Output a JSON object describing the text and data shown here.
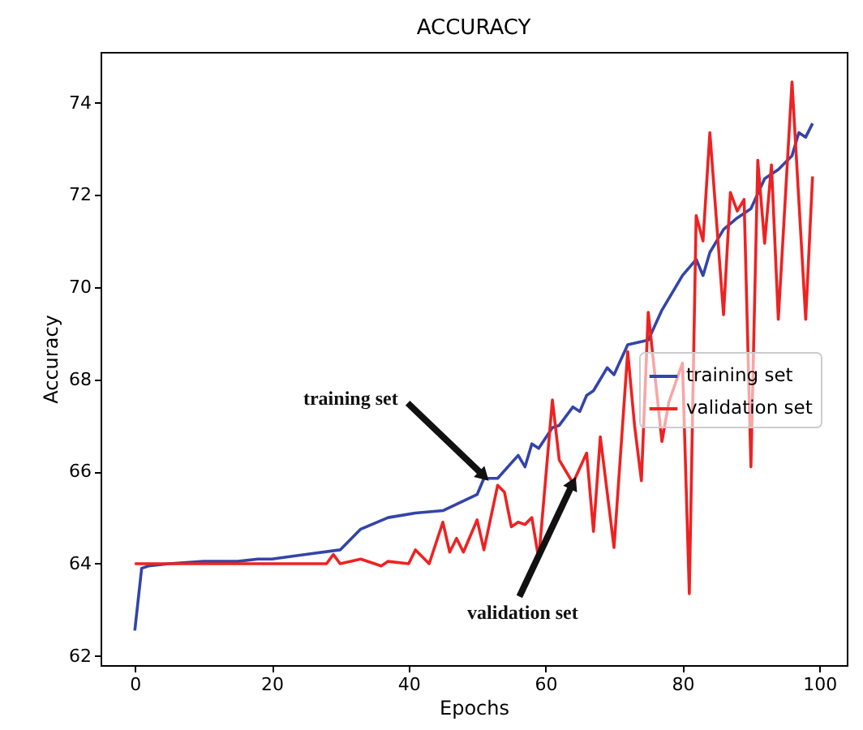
{
  "chart_data": {
    "type": "line",
    "title": "ACCURACY",
    "xlabel": "Epochs",
    "ylabel": "Accuracy",
    "xlim": [
      -5,
      104
    ],
    "ylim": [
      61.8,
      75.1
    ],
    "xticks": [
      0,
      20,
      40,
      60,
      80,
      100
    ],
    "yticks": [
      62,
      64,
      66,
      68,
      70,
      72,
      74
    ],
    "grid": false,
    "legend": "right",
    "line_style": "solid",
    "marker": "none",
    "series": [
      {
        "name": "training set",
        "color": "#3344aa",
        "x": [
          0,
          1,
          2,
          5,
          10,
          15,
          18,
          20,
          25,
          30,
          33,
          37,
          41,
          45,
          50,
          51,
          53,
          56,
          57,
          58,
          59,
          61,
          62,
          64,
          65,
          66,
          67,
          69,
          70,
          72,
          75,
          77,
          80,
          82,
          83,
          84,
          86,
          88,
          90,
          92,
          94,
          96,
          97,
          98,
          99
        ],
        "values": [
          62.55,
          63.9,
          63.95,
          64.0,
          64.05,
          64.05,
          64.1,
          64.1,
          64.2,
          64.3,
          64.75,
          65.0,
          65.1,
          65.15,
          65.5,
          65.85,
          65.85,
          66.35,
          66.1,
          66.6,
          66.5,
          66.95,
          67.0,
          67.4,
          67.3,
          67.65,
          67.75,
          68.25,
          68.1,
          68.75,
          68.85,
          69.5,
          70.25,
          70.6,
          70.25,
          70.75,
          71.25,
          71.5,
          71.7,
          72.35,
          72.55,
          72.85,
          73.35,
          73.25,
          73.55
        ]
      },
      {
        "name": "validation set",
        "color": "#ee2222",
        "x": [
          0,
          28,
          29,
          30,
          33,
          36,
          37,
          40,
          41,
          43,
          45,
          46,
          47,
          48,
          50,
          51,
          53,
          54,
          55,
          56,
          57,
          58,
          59,
          61,
          62,
          64,
          66,
          67,
          68,
          70,
          72,
          73,
          74,
          75,
          77,
          78,
          80,
          81,
          82,
          83,
          84,
          86,
          87,
          88,
          89,
          90,
          91,
          92,
          93,
          94,
          96,
          98,
          99
        ],
        "values": [
          64.0,
          64.0,
          64.2,
          64.0,
          64.1,
          63.95,
          64.05,
          64.0,
          64.3,
          64.0,
          64.9,
          64.25,
          64.55,
          64.25,
          64.95,
          64.3,
          65.7,
          65.55,
          64.8,
          64.9,
          64.85,
          65.0,
          64.1,
          67.55,
          66.25,
          65.75,
          66.4,
          64.7,
          66.75,
          64.35,
          68.6,
          67.0,
          65.8,
          69.45,
          66.65,
          67.5,
          68.35,
          63.35,
          71.55,
          71.0,
          73.35,
          69.4,
          72.05,
          71.65,
          71.9,
          66.1,
          72.75,
          70.95,
          72.65,
          69.3,
          74.45,
          69.3,
          72.4
        ]
      }
    ],
    "annotations": [
      {
        "text": "training set",
        "x": 51,
        "y": 65.9
      },
      {
        "text": "validation set",
        "x": 64,
        "y": 65.75
      }
    ]
  }
}
